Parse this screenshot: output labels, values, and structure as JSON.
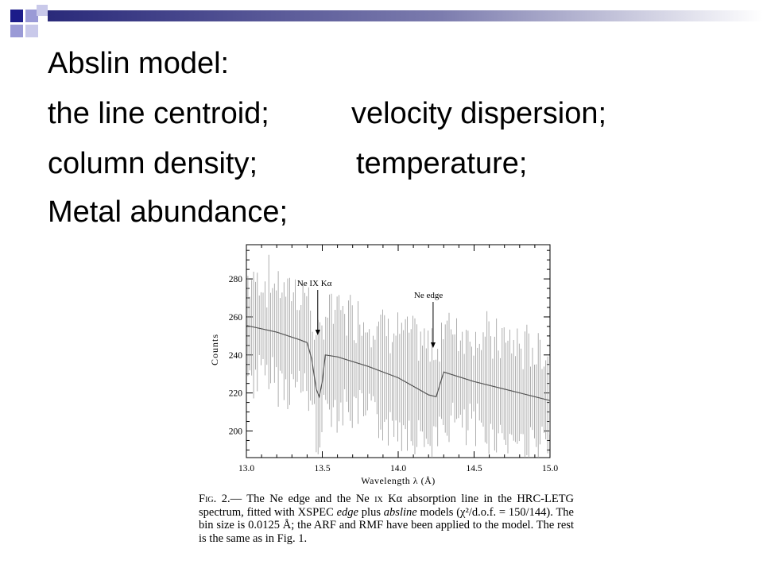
{
  "slide": {
    "lines": [
      [
        "Abslin model:"
      ],
      [
        "the line centroid;",
        "velocity dispersion;"
      ],
      [
        "column density;",
        "temperature;"
      ],
      [
        "Metal abundance;"
      ]
    ],
    "colors": {
      "navy": "#1c1c8a",
      "lavender": "#9a9ad6",
      "header_gradient_start": "#2a2a7a"
    }
  },
  "figure": {
    "ylabel": "Counts",
    "xlabel": "Wavelength λ (Å)",
    "yticks": [
      "200",
      "220",
      "240",
      "260",
      "280"
    ],
    "xticks": [
      "13.0",
      "13.5",
      "14.0",
      "14.5",
      "15.0"
    ],
    "xlim": [
      13.0,
      15.0
    ],
    "ylim": [
      186,
      298
    ],
    "annotations": [
      {
        "text": "Ne IX Kα",
        "x": 13.47
      },
      {
        "text": "Ne edge",
        "x": 14.23
      }
    ],
    "model_curve": [
      [
        13.0,
        255.5
      ],
      [
        13.2,
        252
      ],
      [
        13.35,
        248
      ],
      [
        13.4,
        246.5
      ],
      [
        13.43,
        238
      ],
      [
        13.46,
        222
      ],
      [
        13.48,
        218
      ],
      [
        13.5,
        226
      ],
      [
        13.52,
        240
      ],
      [
        13.6,
        239
      ],
      [
        13.8,
        234
      ],
      [
        14.0,
        228
      ],
      [
        14.2,
        219
      ],
      [
        14.25,
        218
      ],
      [
        14.3,
        231
      ],
      [
        14.5,
        226
      ],
      [
        14.8,
        220
      ],
      [
        15.0,
        216
      ]
    ],
    "caption": {
      "label": "Fig.",
      "number": "2.—",
      "text_1": "The Ne edge and the Ne",
      "roman": "ix",
      "text_2": "Kα absorption line in the HRC-LETG spectrum, fitted with XSPEC",
      "em_1": "edge",
      "text_3": "plus",
      "em_2": "absline",
      "text_4": "models (χ²/d.o.f. = 150/144). The bin size is 0.0125 Å; the ARF and RMF have been applied to the model. The rest is the same as in Fig. 1."
    }
  }
}
